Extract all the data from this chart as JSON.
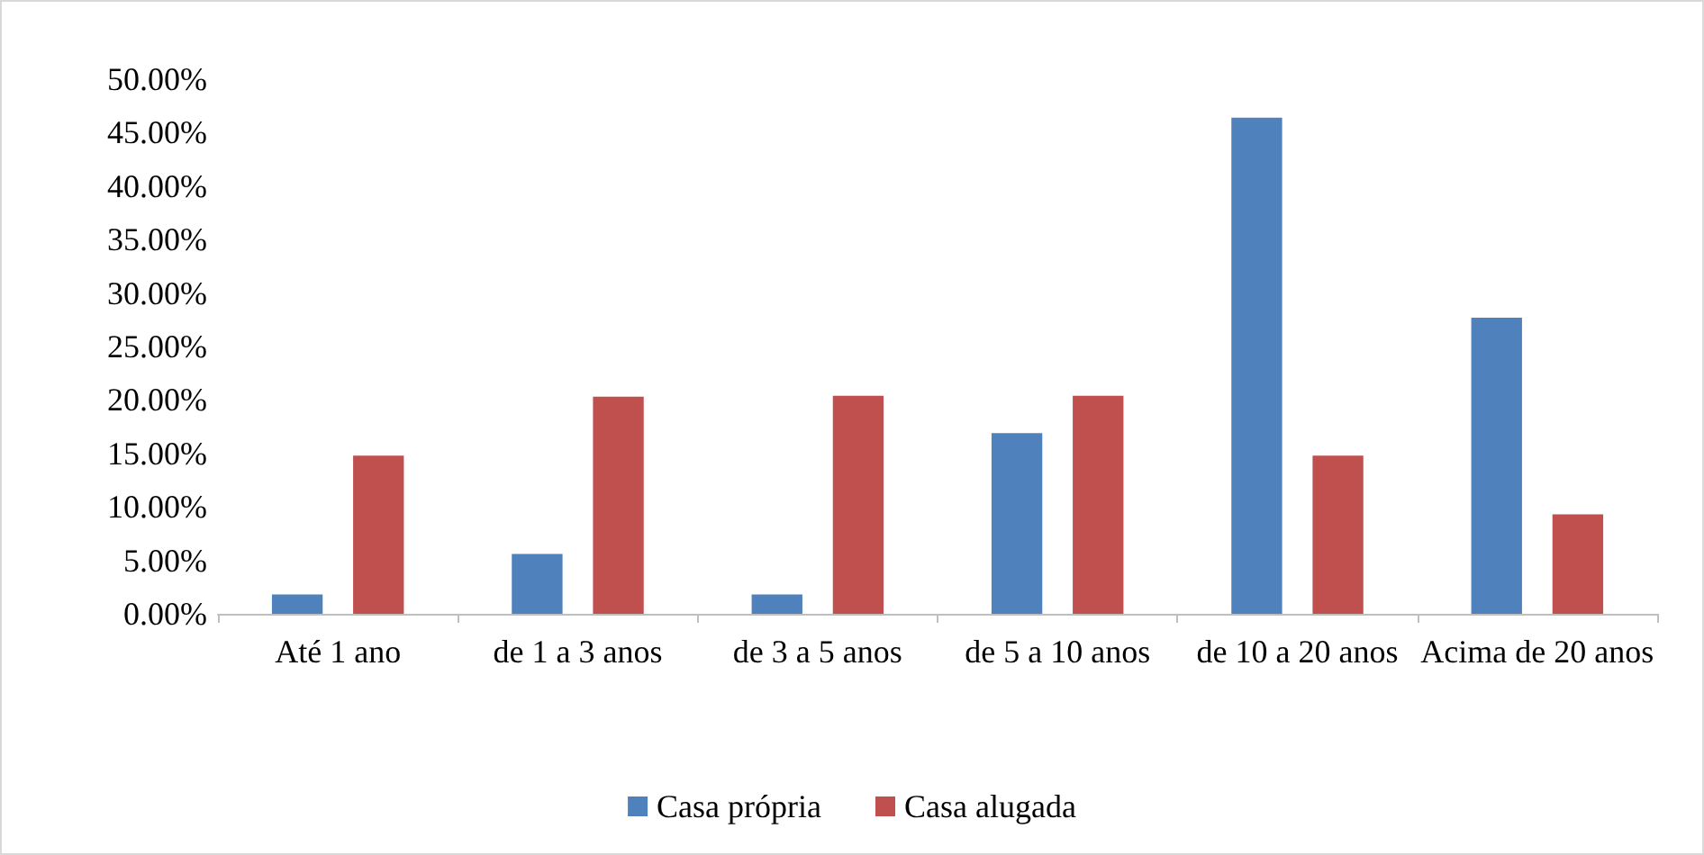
{
  "chart_data": {
    "type": "bar",
    "categories": [
      "Até 1 ano",
      "de 1 a 3 anos",
      "de 3 a 5 anos",
      "de 5 a 10 anos",
      "de 10 a 20 anos",
      "Acima de 20 anos"
    ],
    "series": [
      {
        "name": "Casa própria",
        "color": "#4f81bd",
        "values": [
          1.8,
          5.6,
          1.8,
          16.9,
          46.4,
          27.7
        ]
      },
      {
        "name": "Casa alugada",
        "color": "#c0504d",
        "values": [
          14.8,
          20.3,
          20.4,
          20.4,
          14.8,
          9.3
        ]
      }
    ],
    "ylim": [
      0,
      50
    ],
    "yticks": [
      {
        "value": 0,
        "label": "0.00%"
      },
      {
        "value": 5,
        "label": "5.00%"
      },
      {
        "value": 10,
        "label": "10.00%"
      },
      {
        "value": 15,
        "label": "15.00%"
      },
      {
        "value": 20,
        "label": "20.00%"
      },
      {
        "value": 25,
        "label": "25.00%"
      },
      {
        "value": 30,
        "label": "30.00%"
      },
      {
        "value": 35,
        "label": "35.00%"
      },
      {
        "value": 40,
        "label": "40.00%"
      },
      {
        "value": 45,
        "label": "45.00%"
      },
      {
        "value": 50,
        "label": "50.00%"
      }
    ],
    "grid": false,
    "legend": "bottom"
  }
}
